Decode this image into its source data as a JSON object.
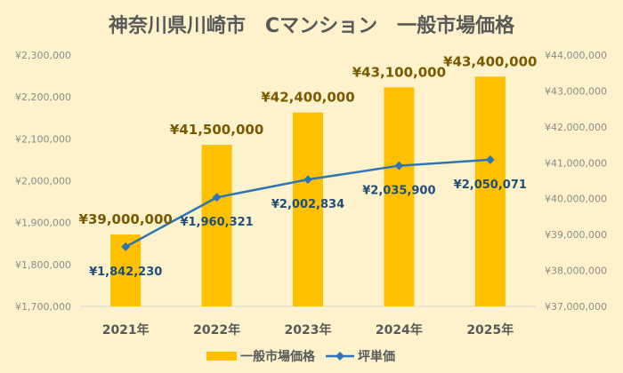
{
  "chart_data": {
    "type": "bar",
    "title": "神奈川県川崎市　Cマンション　一般市場価格",
    "categories": [
      "2021年",
      "2022年",
      "2023年",
      "2024年",
      "2025年"
    ],
    "series": [
      {
        "name": "一般市場価格",
        "type": "bar",
        "axis": "right",
        "values": [
          39000000,
          41500000,
          42400000,
          43100000,
          43400000
        ],
        "labels": [
          "¥39,000,000",
          "¥41,500,000",
          "¥42,400,000",
          "¥43,100,000",
          "¥43,400,000"
        ],
        "color": "#ffc000"
      },
      {
        "name": "坪単価",
        "type": "line",
        "axis": "left",
        "values": [
          1842230,
          1960321,
          2002834,
          2035900,
          2050071
        ],
        "labels": [
          "¥1,842,230",
          "¥1,960,321",
          "¥2,002,834",
          "¥2,035,900",
          "¥2,050,071"
        ],
        "color": "#2e75b6"
      }
    ],
    "left_axis": {
      "range": [
        1700000,
        2300000
      ],
      "ticks": [
        "¥1,700,000",
        "¥1,800,000",
        "¥1,900,000",
        "¥2,000,000",
        "¥2,100,000",
        "¥2,200,000",
        "¥2,300,000"
      ]
    },
    "right_axis": {
      "range": [
        37000000,
        44000000
      ],
      "ticks": [
        "¥37,000,000",
        "¥38,000,000",
        "¥39,000,000",
        "¥40,000,000",
        "¥41,000,000",
        "¥42,000,000",
        "¥43,000,000",
        "¥44,000,000"
      ]
    },
    "grid": false,
    "legend": "bottom",
    "background": "#fdf2cc"
  }
}
